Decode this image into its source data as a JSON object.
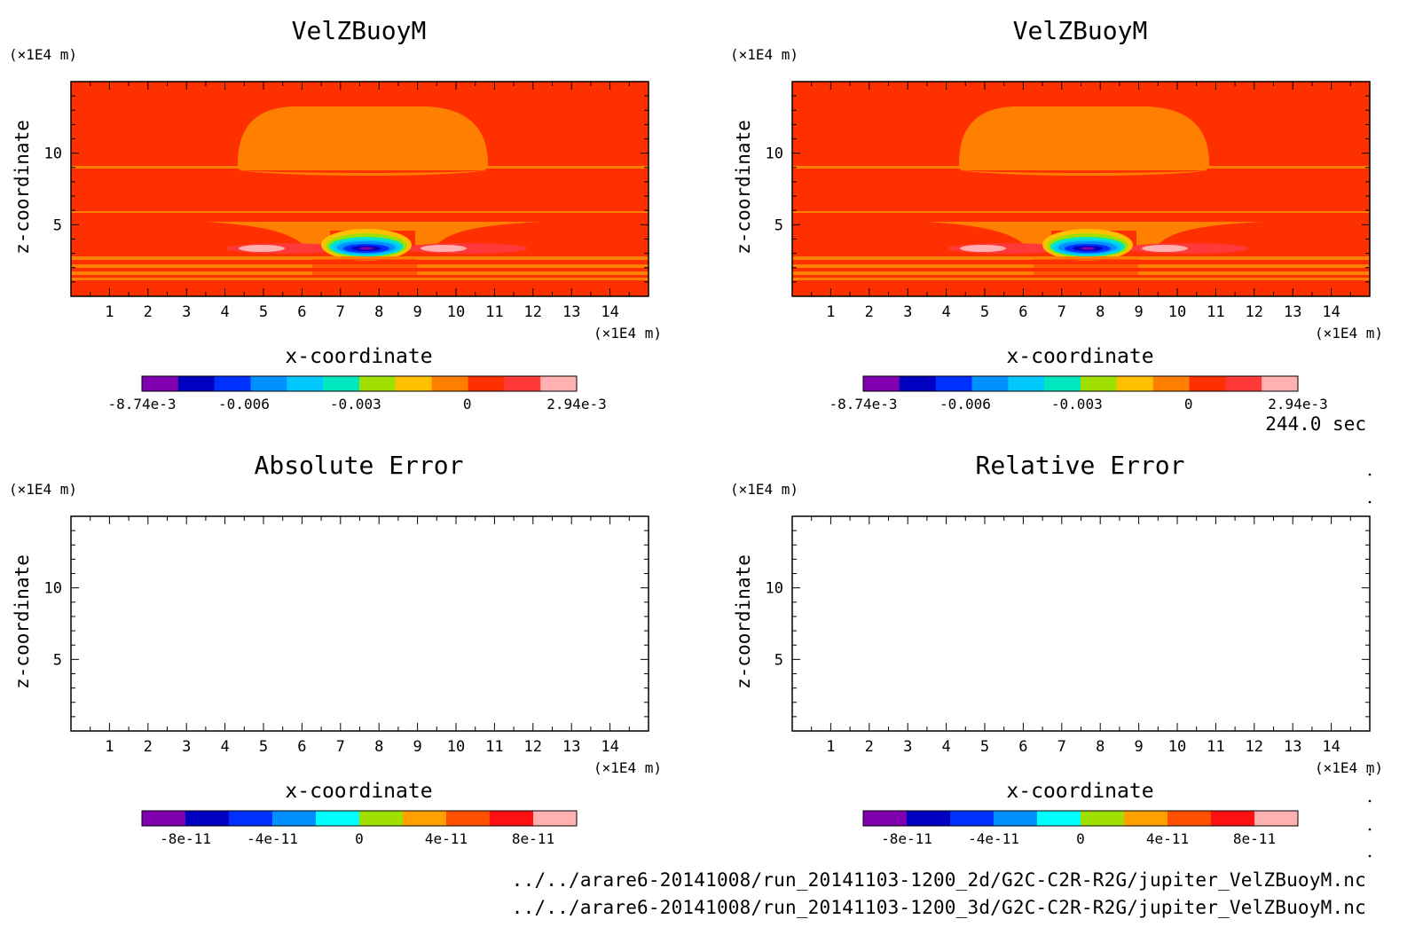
{
  "chart_data": [
    {
      "type": "heatmap",
      "title": "VelZBuoyM",
      "xlabel": "x-coordinate",
      "ylabel": "z-coordinate",
      "x_unit": "(×1E4 m)",
      "y_unit": "(×1E4 m)",
      "xlim": [
        0,
        15
      ],
      "ylim": [
        0,
        15
      ],
      "x_ticks": [
        1,
        2,
        3,
        4,
        5,
        6,
        7,
        8,
        9,
        10,
        11,
        12,
        13,
        14
      ],
      "y_ticks": [
        5,
        10
      ],
      "colorbar": {
        "min": -0.00874,
        "max": 0.00294,
        "colors": [
          "#8000b0",
          "#0000c0",
          "#0030ff",
          "#0090ff",
          "#00c8ff",
          "#00e8c0",
          "#a0e000",
          "#ffc000",
          "#ff8000",
          "#ff3000",
          "#ff3838",
          "#ffb0b0"
        ],
        "tick_labels": [
          {
            "value": -0.00874,
            "label": "-8.74e-3"
          },
          {
            "value": -0.006,
            "label": "-0.006"
          },
          {
            "value": -0.003,
            "label": "-0.003"
          },
          {
            "value": 0,
            "label": "0"
          },
          {
            "value": 0.00294,
            "label": "2.94e-3"
          }
        ]
      },
      "field_description": "mostly near-zero values with a negative minimum near x=7.7, z=3.5"
    },
    {
      "type": "heatmap",
      "title": "VelZBuoyM",
      "xlabel": "x-coordinate",
      "ylabel": "z-coordinate",
      "x_unit": "(×1E4 m)",
      "y_unit": "(×1E4 m)",
      "xlim": [
        0,
        15
      ],
      "ylim": [
        0,
        15
      ],
      "x_ticks": [
        1,
        2,
        3,
        4,
        5,
        6,
        7,
        8,
        9,
        10,
        11,
        12,
        13,
        14
      ],
      "y_ticks": [
        5,
        10
      ],
      "colorbar": {
        "min": -0.00874,
        "max": 0.00294,
        "colors": [
          "#8000b0",
          "#0000c0",
          "#0030ff",
          "#0090ff",
          "#00c8ff",
          "#00e8c0",
          "#a0e000",
          "#ffc000",
          "#ff8000",
          "#ff3000",
          "#ff3838",
          "#ffb0b0"
        ],
        "tick_labels": [
          {
            "value": -0.00874,
            "label": "-8.74e-3"
          },
          {
            "value": -0.006,
            "label": "-0.006"
          },
          {
            "value": -0.003,
            "label": "-0.003"
          },
          {
            "value": 0,
            "label": "0"
          },
          {
            "value": 0.00294,
            "label": "2.94e-3"
          }
        ]
      }
    },
    {
      "type": "heatmap",
      "title": "Absolute Error",
      "xlabel": "x-coordinate",
      "ylabel": "z-coordinate",
      "x_unit": "(×1E4 m)",
      "y_unit": "(×1E4 m)",
      "xlim": [
        0,
        15
      ],
      "ylim": [
        0,
        15
      ],
      "x_ticks": [
        1,
        2,
        3,
        4,
        5,
        6,
        7,
        8,
        9,
        10,
        11,
        12,
        13,
        14
      ],
      "y_ticks": [
        5,
        10
      ],
      "empty": true,
      "colorbar": {
        "min": -1e-10,
        "max": 1e-10,
        "colors": [
          "#8000b0",
          "#0000c0",
          "#0030ff",
          "#0090ff",
          "#00ffff",
          "#a0e000",
          "#ffa000",
          "#ff5000",
          "#ff1010",
          "#ffb0b0"
        ],
        "tick_labels": [
          {
            "value": -8e-11,
            "label": "-8e-11"
          },
          {
            "value": -4e-11,
            "label": "-4e-11"
          },
          {
            "value": 0,
            "label": "0"
          },
          {
            "value": 4e-11,
            "label": "4e-11"
          },
          {
            "value": 8e-11,
            "label": "8e-11"
          }
        ]
      }
    },
    {
      "type": "heatmap",
      "title": "Relative Error",
      "xlabel": "x-coordinate",
      "ylabel": "z-coordinate",
      "x_unit": "(×1E4 m)",
      "y_unit": "(×1E4 m)",
      "xlim": [
        0,
        15
      ],
      "ylim": [
        0,
        15
      ],
      "x_ticks": [
        1,
        2,
        3,
        4,
        5,
        6,
        7,
        8,
        9,
        10,
        11,
        12,
        13,
        14
      ],
      "y_ticks": [
        5,
        10
      ],
      "empty": true,
      "colorbar": {
        "min": -1e-10,
        "max": 1e-10,
        "colors": [
          "#8000b0",
          "#0000c0",
          "#0030ff",
          "#0090ff",
          "#00ffff",
          "#a0e000",
          "#ffa000",
          "#ff5000",
          "#ff1010",
          "#ffb0b0"
        ],
        "tick_labels": [
          {
            "value": -8e-11,
            "label": "-8e-11"
          },
          {
            "value": -4e-11,
            "label": "-4e-11"
          },
          {
            "value": 0,
            "label": "0"
          },
          {
            "value": 4e-11,
            "label": "4e-11"
          },
          {
            "value": 8e-11,
            "label": "8e-11"
          }
        ]
      }
    }
  ],
  "time_label": "244.0 sec",
  "files": [
    "../../arare6-20141008/run_20141103-1200_2d/G2C-C2R-R2G/jupiter_VelZBuoyM.nc",
    "../../arare6-20141008/run_20141103-1200_3d/G2C-C2R-R2G/jupiter_VelZBuoyM.nc"
  ]
}
